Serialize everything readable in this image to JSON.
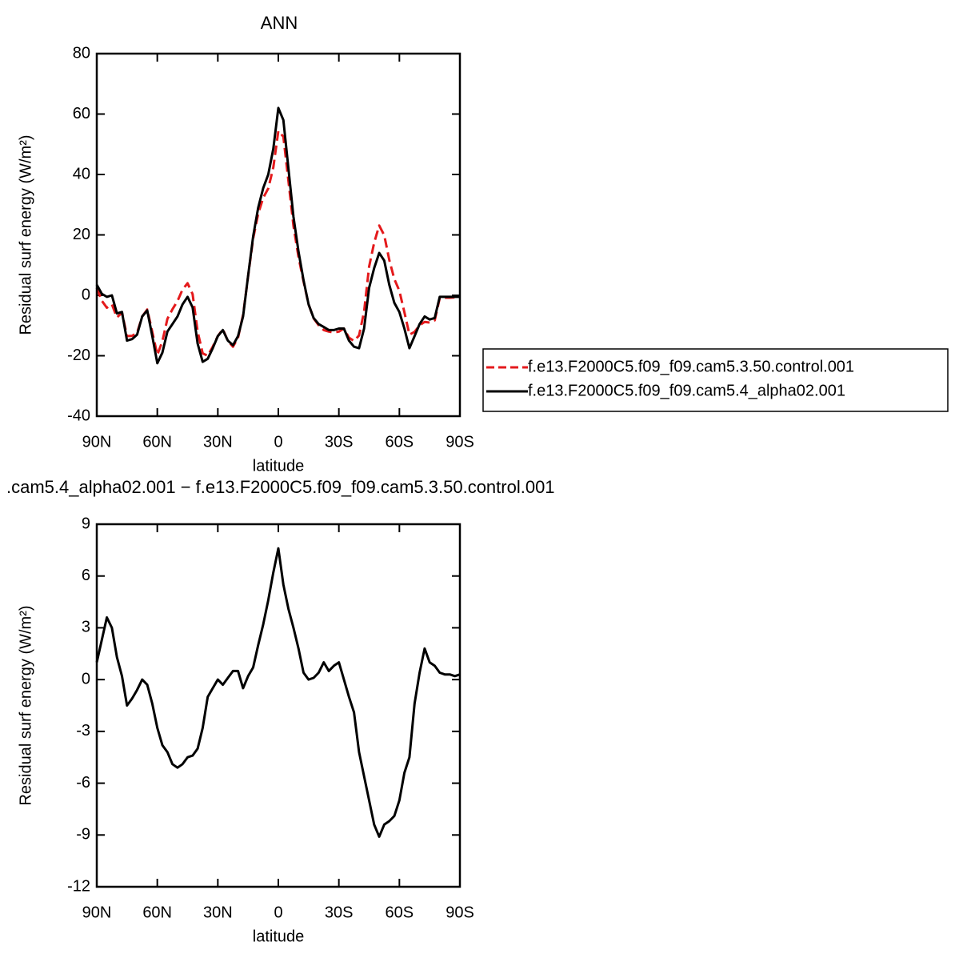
{
  "chart_data": [
    {
      "type": "line",
      "title": "ANN",
      "xlabel": "latitude",
      "ylabel": "Residual surf energy (W/m²)",
      "xlim": [
        90,
        -90
      ],
      "ylim": [
        -40,
        80
      ],
      "xticks": [
        {
          "value": 90,
          "label": "90N"
        },
        {
          "value": 60,
          "label": "60N"
        },
        {
          "value": 30,
          "label": "30N"
        },
        0,
        {
          "value": -30,
          "label": "30S"
        },
        {
          "value": -60,
          "label": "60S"
        },
        {
          "value": -90,
          "label": "90S"
        }
      ],
      "yticks": [
        -40,
        -20,
        0,
        20,
        40,
        60,
        80
      ],
      "legend": "right",
      "x": [
        90,
        87.5,
        85,
        82.5,
        80,
        77.5,
        75,
        72.5,
        70,
        67.5,
        65,
        62.5,
        60,
        57.5,
        55,
        52.5,
        50,
        47.5,
        45,
        42.5,
        40,
        37.5,
        35,
        32.5,
        30,
        27.5,
        25,
        22.5,
        20,
        17.5,
        15,
        12.5,
        10,
        7.5,
        5,
        2.5,
        0,
        -2.5,
        -5,
        -7.5,
        -10,
        -12.5,
        -15,
        -17.5,
        -20,
        -22.5,
        -25,
        -27.5,
        -30,
        -32.5,
        -35,
        -37.5,
        -40,
        -42.5,
        -45,
        -47.5,
        -50,
        -52.5,
        -55,
        -57.5,
        -60,
        -62.5,
        -65,
        -67.5,
        -70,
        -72.5,
        -75,
        -77.5,
        -80,
        -82.5,
        -85,
        -87.5,
        -90
      ],
      "series": [
        {
          "name": "f.e13.F2000C5.f09_f09.cam5.3.50.control.001",
          "color": "#e41a1c",
          "dashed": true,
          "values": [
            2.5,
            -1.8,
            -4.1,
            -3,
            -7.3,
            -5.7,
            -13.5,
            -13.4,
            -12.4,
            -7,
            -4.7,
            -12.1,
            -19.7,
            -15.2,
            -7.8,
            -4.6,
            -1.9,
            1.9,
            4,
            0.4,
            -12,
            -19.2,
            -20,
            -17,
            -13.5,
            -11.2,
            -15.1,
            -17,
            -14,
            -6.5,
            6.3,
            18.8,
            27,
            32.3,
            35.4,
            42.3,
            54.4,
            52.5,
            37.9,
            23,
            12.7,
            4.6,
            -3,
            -7.6,
            -9.9,
            -11.5,
            -12,
            -12.3,
            -12,
            -11,
            -14,
            -15.1,
            -13.3,
            -5.4,
            9.5,
            17.4,
            23.1,
            19.9,
            11.7,
            5.4,
            1.5,
            -5.6,
            -13,
            -12.1,
            -9.9,
            -8.8,
            -9,
            -8.3,
            -0.9,
            -0.8,
            -0.8,
            -0.7,
            -0.8
          ]
        },
        {
          "name": "f.e13.F2000C5.f09_f09.cam5.4_alpha02.001",
          "color": "#000000",
          "dashed": false,
          "values": [
            3.5,
            0.5,
            -0.5,
            0,
            -6,
            -5.5,
            -15,
            -14.5,
            -13,
            -7,
            -5,
            -13.5,
            -22.5,
            -19,
            -12,
            -9.5,
            -7,
            -3,
            -0.5,
            -4,
            -16,
            -22,
            -21,
            -17.5,
            -13.5,
            -11.5,
            -15,
            -16.5,
            -13.5,
            -7,
            6.5,
            19.5,
            29,
            35.5,
            40,
            48.5,
            62,
            58,
            42,
            26,
            14.5,
            5,
            -3,
            -7.5,
            -9.5,
            -10.5,
            -11.5,
            -11.5,
            -11,
            -11,
            -15,
            -17,
            -17.5,
            -11,
            2.5,
            9,
            14,
            11.5,
            3.5,
            -2.5,
            -5.5,
            -11,
            -17.5,
            -13.5,
            -9.5,
            -7,
            -8,
            -7.5,
            -0.5,
            -0.5,
            -0.5,
            -0.5,
            -0.5
          ]
        }
      ]
    },
    {
      "type": "line",
      "title": ".cam5.4_alpha02.001 − f.e13.F2000C5.f09_f09.cam5.3.50.control.001",
      "xlabel": "latitude",
      "ylabel": "Residual surf energy (W/m²)",
      "xlim": [
        90,
        -90
      ],
      "ylim": [
        -12,
        9
      ],
      "xticks": [
        {
          "value": 90,
          "label": "90N"
        },
        {
          "value": 60,
          "label": "60N"
        },
        {
          "value": 30,
          "label": "30N"
        },
        0,
        {
          "value": -30,
          "label": "30S"
        },
        {
          "value": -60,
          "label": "60S"
        },
        {
          "value": -90,
          "label": "90S"
        }
      ],
      "yticks": [
        -12,
        -9,
        -6,
        -3,
        0,
        3,
        6,
        9
      ],
      "x": [
        90,
        87.5,
        85,
        82.5,
        80,
        77.5,
        75,
        72.5,
        70,
        67.5,
        65,
        62.5,
        60,
        57.5,
        55,
        52.5,
        50,
        47.5,
        45,
        42.5,
        40,
        37.5,
        35,
        32.5,
        30,
        27.5,
        25,
        22.5,
        20,
        17.5,
        15,
        12.5,
        10,
        7.5,
        5,
        2.5,
        0,
        -2.5,
        -5,
        -7.5,
        -10,
        -12.5,
        -15,
        -17.5,
        -20,
        -22.5,
        -25,
        -27.5,
        -30,
        -32.5,
        -35,
        -37.5,
        -40,
        -42.5,
        -45,
        -47.5,
        -50,
        -52.5,
        -55,
        -57.5,
        -60,
        -62.5,
        -65,
        -67.5,
        -70,
        -72.5,
        -75,
        -77.5,
        -80,
        -82.5,
        -85,
        -87.5,
        -90
      ],
      "series": [
        {
          "color": "#000000",
          "dashed": false,
          "values": [
            1,
            2.3,
            3.6,
            3,
            1.3,
            0.2,
            -1.5,
            -1.1,
            -0.6,
            0,
            -0.3,
            -1.4,
            -2.8,
            -3.8,
            -4.2,
            -4.9,
            -5.1,
            -4.9,
            -4.5,
            -4.4,
            -4,
            -2.8,
            -1,
            -0.5,
            0,
            -0.3,
            0.1,
            0.5,
            0.5,
            -0.5,
            0.2,
            0.7,
            2,
            3.2,
            4.6,
            6.2,
            7.6,
            5.5,
            4.1,
            3,
            1.8,
            0.4,
            0,
            0.1,
            0.4,
            1,
            0.5,
            0.8,
            1,
            0,
            -1,
            -1.9,
            -4.2,
            -5.6,
            -7,
            -8.4,
            -9.1,
            -8.4,
            -8.2,
            -7.9,
            -7,
            -5.4,
            -4.5,
            -1.4,
            0.4,
            1.8,
            1,
            0.8,
            0.4,
            0.3,
            0.3,
            0.2,
            0.3
          ]
        }
      ]
    }
  ]
}
